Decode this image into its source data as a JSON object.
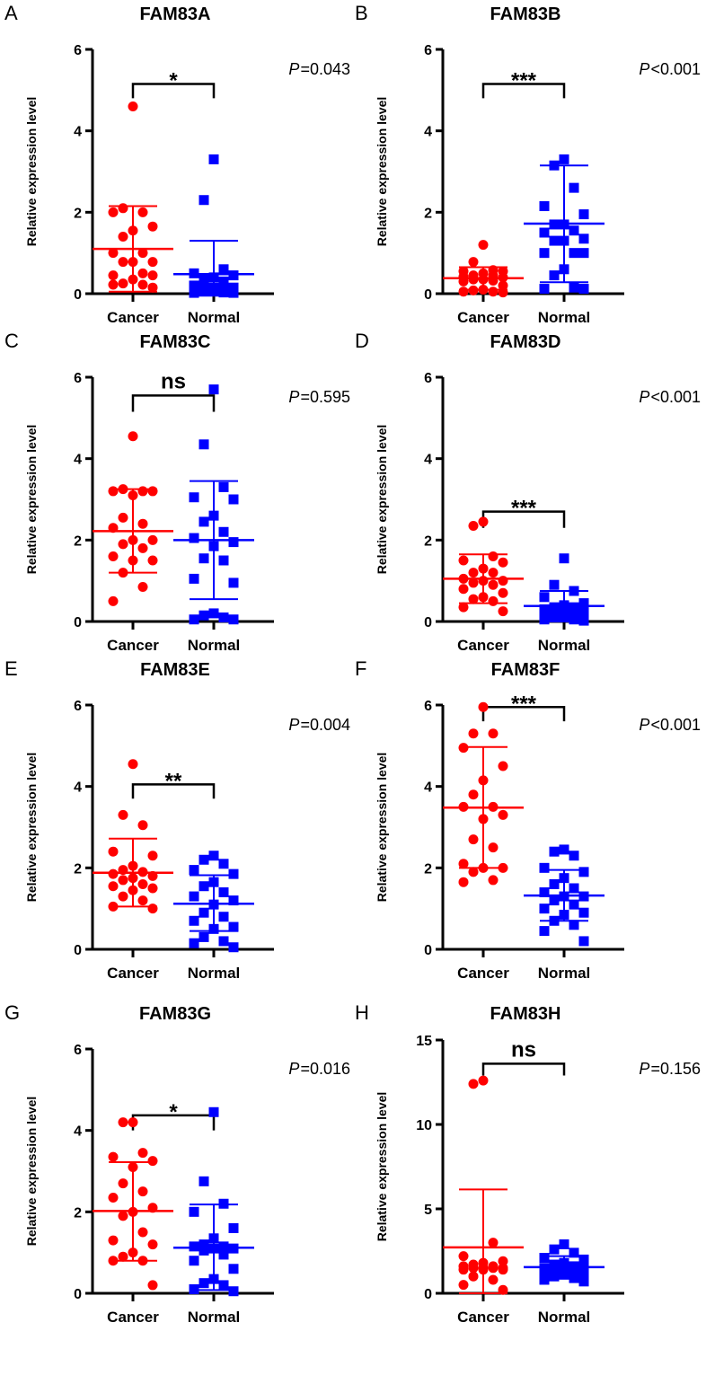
{
  "chart_data": [
    {
      "type": "scatter",
      "letter": "A",
      "title": "FAM83A",
      "ylabel": "Relative expression level",
      "categories": [
        "Cancer",
        "Normal"
      ],
      "ylim": [
        0,
        6
      ],
      "yticks": [
        "0",
        "2",
        "4",
        "6"
      ],
      "p_label": "P",
      "p_value": "=0.043",
      "significance": "*",
      "bracket": [
        5.15,
        4.8
      ],
      "series": [
        {
          "name": "Cancer",
          "color": "#ff0000",
          "marker": "circle",
          "values": [
            4.6,
            2.1,
            2.0,
            2.0,
            1.65,
            1.55,
            1.4,
            1.0,
            1.0,
            0.78,
            0.78,
            0.78,
            0.5,
            0.45,
            0.45,
            0.35,
            0.25,
            0.22,
            0.22,
            0.15
          ],
          "mean": 1.1,
          "sd_range": [
            0.05,
            2.15
          ]
        },
        {
          "name": "Normal",
          "color": "#0000ff",
          "marker": "square",
          "values": [
            3.3,
            2.3,
            0.6,
            0.5,
            0.45,
            0.4,
            0.35,
            0.3,
            0.2,
            0.15,
            0.15,
            0.12,
            0.1,
            0.1,
            0.08,
            0.05,
            0.05,
            0.03,
            0.02,
            0.02
          ],
          "mean": 0.48,
          "sd_range": [
            0,
            1.3
          ]
        }
      ]
    },
    {
      "type": "scatter",
      "letter": "B",
      "title": "FAM83B",
      "ylabel": "Relative expression level",
      "categories": [
        "Cancer",
        "Normal"
      ],
      "ylim": [
        0,
        6
      ],
      "yticks": [
        "0",
        "2",
        "4",
        "6"
      ],
      "p_label": "P",
      "p_value": "<0.001",
      "significance": "***",
      "bracket": [
        5.15,
        4.8
      ],
      "series": [
        {
          "name": "Cancer",
          "color": "#ff0000",
          "marker": "circle",
          "values": [
            1.2,
            0.78,
            0.58,
            0.55,
            0.55,
            0.5,
            0.45,
            0.45,
            0.42,
            0.4,
            0.35,
            0.35,
            0.32,
            0.3,
            0.2,
            0.1,
            0.08,
            0.05,
            0.05,
            0.03
          ],
          "mean": 0.38,
          "sd_range": [
            0.1,
            0.65
          ]
        },
        {
          "name": "Normal",
          "color": "#0000ff",
          "marker": "square",
          "values": [
            3.3,
            3.15,
            2.6,
            2.15,
            1.95,
            1.7,
            1.7,
            1.55,
            1.5,
            1.35,
            1.3,
            1.3,
            1.0,
            1.0,
            1.0,
            0.6,
            0.45,
            0.15,
            0.12,
            0.12
          ],
          "mean": 1.72,
          "sd_range": [
            0.28,
            3.15
          ]
        }
      ]
    },
    {
      "type": "scatter",
      "letter": "C",
      "title": "FAM83C",
      "ylabel": "Relative expression level",
      "categories": [
        "Cancer",
        "Normal"
      ],
      "ylim": [
        0,
        6
      ],
      "yticks": [
        "0",
        "2",
        "4",
        "6"
      ],
      "p_label": "P",
      "p_value": "=0.595",
      "significance": "ns",
      "bracket": [
        5.55,
        5.15
      ],
      "series": [
        {
          "name": "Cancer",
          "color": "#ff0000",
          "marker": "circle",
          "values": [
            4.55,
            3.25,
            3.2,
            3.2,
            3.2,
            3.1,
            2.55,
            2.4,
            2.3,
            2.0,
            2.0,
            1.9,
            1.8,
            1.6,
            1.5,
            1.5,
            1.2,
            0.85,
            0.5
          ],
          "mean": 2.22,
          "sd_range": [
            1.2,
            3.25
          ]
        },
        {
          "name": "Normal",
          "color": "#0000ff",
          "marker": "square",
          "values": [
            5.7,
            4.35,
            3.3,
            3.05,
            3.0,
            2.6,
            2.45,
            2.2,
            2.05,
            1.95,
            1.85,
            1.55,
            1.5,
            1.05,
            0.95,
            0.2,
            0.15,
            0.1,
            0.05,
            0.05
          ],
          "mean": 2.0,
          "sd_range": [
            0.55,
            3.45
          ]
        }
      ]
    },
    {
      "type": "scatter",
      "letter": "D",
      "title": "FAM83D",
      "ylabel": "Relative expression level",
      "categories": [
        "Cancer",
        "Normal"
      ],
      "ylim": [
        0,
        6
      ],
      "yticks": [
        "0",
        "2",
        "4",
        "6"
      ],
      "p_label": "P",
      "p_value": "<0.001",
      "significance": "***",
      "bracket": [
        2.7,
        2.3
      ],
      "series": [
        {
          "name": "Cancer",
          "color": "#ff0000",
          "marker": "circle",
          "values": [
            2.45,
            2.35,
            1.6,
            1.5,
            1.45,
            1.3,
            1.2,
            1.2,
            1.05,
            1.0,
            1.0,
            0.95,
            0.9,
            0.8,
            0.7,
            0.6,
            0.55,
            0.5,
            0.35,
            0.25
          ],
          "mean": 1.05,
          "sd_range": [
            0.45,
            1.65
          ]
        },
        {
          "name": "Normal",
          "color": "#0000ff",
          "marker": "square",
          "values": [
            1.55,
            0.9,
            0.75,
            0.6,
            0.45,
            0.4,
            0.35,
            0.35,
            0.3,
            0.3,
            0.25,
            0.2,
            0.2,
            0.15,
            0.15,
            0.1,
            0.1,
            0.05,
            0.05,
            0.02
          ],
          "mean": 0.38,
          "sd_range": [
            0,
            0.75
          ]
        }
      ]
    },
    {
      "type": "scatter",
      "letter": "E",
      "title": "FAM83E",
      "ylabel": "Relative expression level",
      "categories": [
        "Cancer",
        "Normal"
      ],
      "ylim": [
        0,
        6
      ],
      "yticks": [
        "0",
        "2",
        "4",
        "6"
      ],
      "p_label": "P",
      "p_value": "=0.004",
      "significance": "**",
      "bracket": [
        4.05,
        3.7
      ],
      "series": [
        {
          "name": "Cancer",
          "color": "#ff0000",
          "marker": "circle",
          "values": [
            4.55,
            3.3,
            3.05,
            2.4,
            2.3,
            2.05,
            1.95,
            1.9,
            1.85,
            1.8,
            1.75,
            1.7,
            1.6,
            1.55,
            1.5,
            1.45,
            1.3,
            1.2,
            1.05,
            1.0
          ],
          "mean": 1.88,
          "sd_range": [
            1.05,
            2.72
          ]
        },
        {
          "name": "Normal",
          "color": "#0000ff",
          "marker": "square",
          "values": [
            2.3,
            2.2,
            2.1,
            1.95,
            1.85,
            1.65,
            1.55,
            1.4,
            1.3,
            1.2,
            1.1,
            0.9,
            0.8,
            0.7,
            0.55,
            0.5,
            0.3,
            0.2,
            0.15,
            0.05
          ],
          "mean": 1.12,
          "sd_range": [
            0.45,
            1.82
          ]
        }
      ]
    },
    {
      "type": "scatter",
      "letter": "F",
      "title": "FAM83F",
      "ylabel": "Relative expression level",
      "categories": [
        "Cancer",
        "Normal"
      ],
      "ylim": [
        0,
        6
      ],
      "yticks": [
        "0",
        "2",
        "4",
        "6"
      ],
      "p_label": "P",
      "p_value": "<0.001",
      "significance": "***",
      "bracket": [
        5.95,
        5.6
      ],
      "series": [
        {
          "name": "Cancer",
          "color": "#ff0000",
          "marker": "circle",
          "values": [
            5.95,
            5.3,
            5.3,
            4.95,
            4.5,
            4.15,
            3.8,
            3.5,
            3.5,
            3.3,
            3.2,
            2.7,
            2.5,
            2.1,
            2.0,
            2.0,
            1.9,
            1.7,
            1.65
          ],
          "mean": 3.48,
          "sd_range": [
            2.0,
            4.97
          ]
        },
        {
          "name": "Normal",
          "color": "#0000ff",
          "marker": "square",
          "values": [
            2.45,
            2.4,
            2.3,
            2.0,
            1.9,
            1.75,
            1.6,
            1.5,
            1.4,
            1.3,
            1.3,
            1.2,
            1.1,
            1.0,
            0.9,
            0.85,
            0.7,
            0.6,
            0.45,
            0.2
          ],
          "mean": 1.32,
          "sd_range": [
            0.7,
            1.95
          ]
        }
      ]
    },
    {
      "type": "scatter",
      "letter": "G",
      "title": "FAM83G",
      "ylabel": "Relative expression level",
      "categories": [
        "Cancer",
        "Normal"
      ],
      "ylim": [
        0,
        6
      ],
      "yticks": [
        "0",
        "2",
        "4",
        "6"
      ],
      "p_label": "P",
      "p_value": "=0.016",
      "significance": "*",
      "bracket": [
        4.37,
        4.0
      ],
      "series": [
        {
          "name": "Cancer",
          "color": "#ff0000",
          "marker": "circle",
          "values": [
            4.2,
            4.2,
            3.45,
            3.35,
            3.25,
            3.1,
            2.7,
            2.5,
            2.35,
            2.1,
            2.0,
            1.9,
            1.5,
            1.3,
            1.2,
            1.0,
            0.9,
            0.8,
            0.8,
            0.2
          ],
          "mean": 2.02,
          "sd_range": [
            0.8,
            3.22
          ]
        },
        {
          "name": "Normal",
          "color": "#0000ff",
          "marker": "square",
          "values": [
            4.45,
            2.75,
            2.2,
            2.0,
            1.6,
            1.35,
            1.2,
            1.15,
            1.15,
            1.1,
            1.1,
            1.05,
            0.95,
            0.8,
            0.6,
            0.35,
            0.25,
            0.2,
            0.1,
            0.05
          ],
          "mean": 1.12,
          "sd_range": [
            0.08,
            2.18
          ]
        }
      ]
    },
    {
      "type": "scatter",
      "letter": "H",
      "title": "FAM83H",
      "ylabel": "Relative expression level",
      "categories": [
        "Cancer",
        "Normal"
      ],
      "ylim": [
        0,
        15
      ],
      "yticks": [
        "0",
        "5",
        "10",
        "15"
      ],
      "p_label": "P",
      "p_value": "=0.156",
      "significance": "ns",
      "bracket": [
        13.6,
        12.9
      ],
      "series": [
        {
          "name": "Cancer",
          "color": "#ff0000",
          "marker": "circle",
          "values": [
            12.6,
            12.4,
            3.0,
            2.2,
            1.9,
            1.8,
            1.7,
            1.6,
            1.6,
            1.5,
            1.5,
            1.5,
            1.5,
            1.4,
            1.4,
            1.4,
            1.0,
            0.8,
            0.5,
            0.2
          ],
          "mean": 2.72,
          "sd_range": [
            0,
            6.15
          ]
        },
        {
          "name": "Normal",
          "color": "#0000ff",
          "marker": "square",
          "values": [
            2.9,
            2.6,
            2.4,
            2.1,
            2.0,
            1.8,
            1.7,
            1.6,
            1.5,
            1.5,
            1.4,
            1.4,
            1.3,
            1.3,
            1.2,
            1.1,
            1.0,
            0.9,
            0.8,
            0.7
          ],
          "mean": 1.55,
          "sd_range": [
            0.95,
            2.2
          ]
        }
      ]
    }
  ]
}
